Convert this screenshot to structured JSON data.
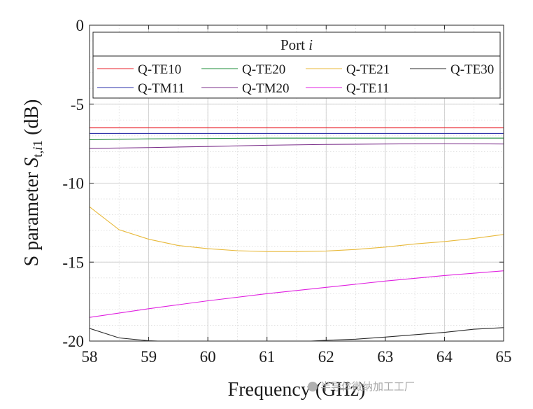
{
  "chart_data": {
    "type": "line",
    "xlabel": "Frequency (GHz)",
    "ylabel_parts": {
      "prefix": "S parameter ",
      "symbol": "S",
      "subscript_t": "t,",
      "subscript_i": "i",
      "subscript_1": "1",
      "unit": " (dB)"
    },
    "xlim": [
      58,
      65
    ],
    "ylim": [
      -20,
      0
    ],
    "x_ticks": [
      "58",
      "59",
      "60",
      "61",
      "62",
      "63",
      "64",
      "65"
    ],
    "y_ticks": [
      "0",
      "-5",
      "-10",
      "-15",
      "-20"
    ],
    "grid": true,
    "legend": {
      "title_prefix": "Port ",
      "title_italic": "i",
      "placement": "top",
      "columns": 4
    },
    "series": [
      {
        "name": "Q-TE10",
        "color": "#e8202a",
        "x": [
          58,
          59,
          60,
          61,
          62,
          63,
          64,
          65
        ],
        "y": [
          -6.5,
          -6.5,
          -6.5,
          -6.5,
          -6.5,
          -6.5,
          -6.5,
          -6.5
        ]
      },
      {
        "name": "Q-TE20",
        "color": "#1e8c3a",
        "x": [
          58,
          59,
          60,
          61,
          62,
          63,
          64,
          65
        ],
        "y": [
          -7.25,
          -7.2,
          -7.17,
          -7.15,
          -7.15,
          -7.15,
          -7.15,
          -7.15
        ]
      },
      {
        "name": "Q-TE21",
        "color": "#e8b93a",
        "x": [
          58,
          58.5,
          59,
          59.5,
          60,
          60.5,
          61,
          61.5,
          62,
          62.5,
          63,
          63.5,
          64,
          64.5,
          65
        ],
        "y": [
          -11.5,
          -12.95,
          -13.55,
          -13.95,
          -14.15,
          -14.28,
          -14.33,
          -14.33,
          -14.3,
          -14.2,
          -14.05,
          -13.85,
          -13.7,
          -13.5,
          -13.25
        ]
      },
      {
        "name": "Q-TE30",
        "color": "#2a2a2a",
        "x": [
          58,
          58.5,
          59,
          59.5,
          60,
          60.5,
          61,
          61.5,
          62,
          62.5,
          63,
          63.5,
          64,
          64.5,
          65
        ],
        "y": [
          -19.2,
          -19.8,
          -19.98,
          -20.05,
          -20.1,
          -20.12,
          -20.12,
          -20.05,
          -19.95,
          -19.88,
          -19.75,
          -19.6,
          -19.45,
          -19.25,
          -19.15
        ]
      },
      {
        "name": "Q-TM11",
        "color": "#2a2fa8",
        "x": [
          58,
          59,
          60,
          61,
          62,
          63,
          64,
          65
        ],
        "y": [
          -6.85,
          -6.85,
          -6.85,
          -6.85,
          -6.85,
          -6.85,
          -6.85,
          -6.85
        ]
      },
      {
        "name": "Q-TM20",
        "color": "#7b2f8a",
        "x": [
          58,
          59,
          60,
          61,
          62,
          63,
          64,
          65
        ],
        "y": [
          -7.8,
          -7.75,
          -7.68,
          -7.6,
          -7.55,
          -7.52,
          -7.5,
          -7.52
        ]
      },
      {
        "name": "Q-TE11",
        "color": "#e020e0",
        "x": [
          58,
          59,
          60,
          61,
          62,
          63,
          64,
          65
        ],
        "y": [
          -18.5,
          -17.95,
          -17.45,
          -17.0,
          -16.6,
          -16.2,
          -15.85,
          -15.55
        ]
      }
    ]
  },
  "watermark": {
    "text": "半导体微纳加工工厂"
  }
}
